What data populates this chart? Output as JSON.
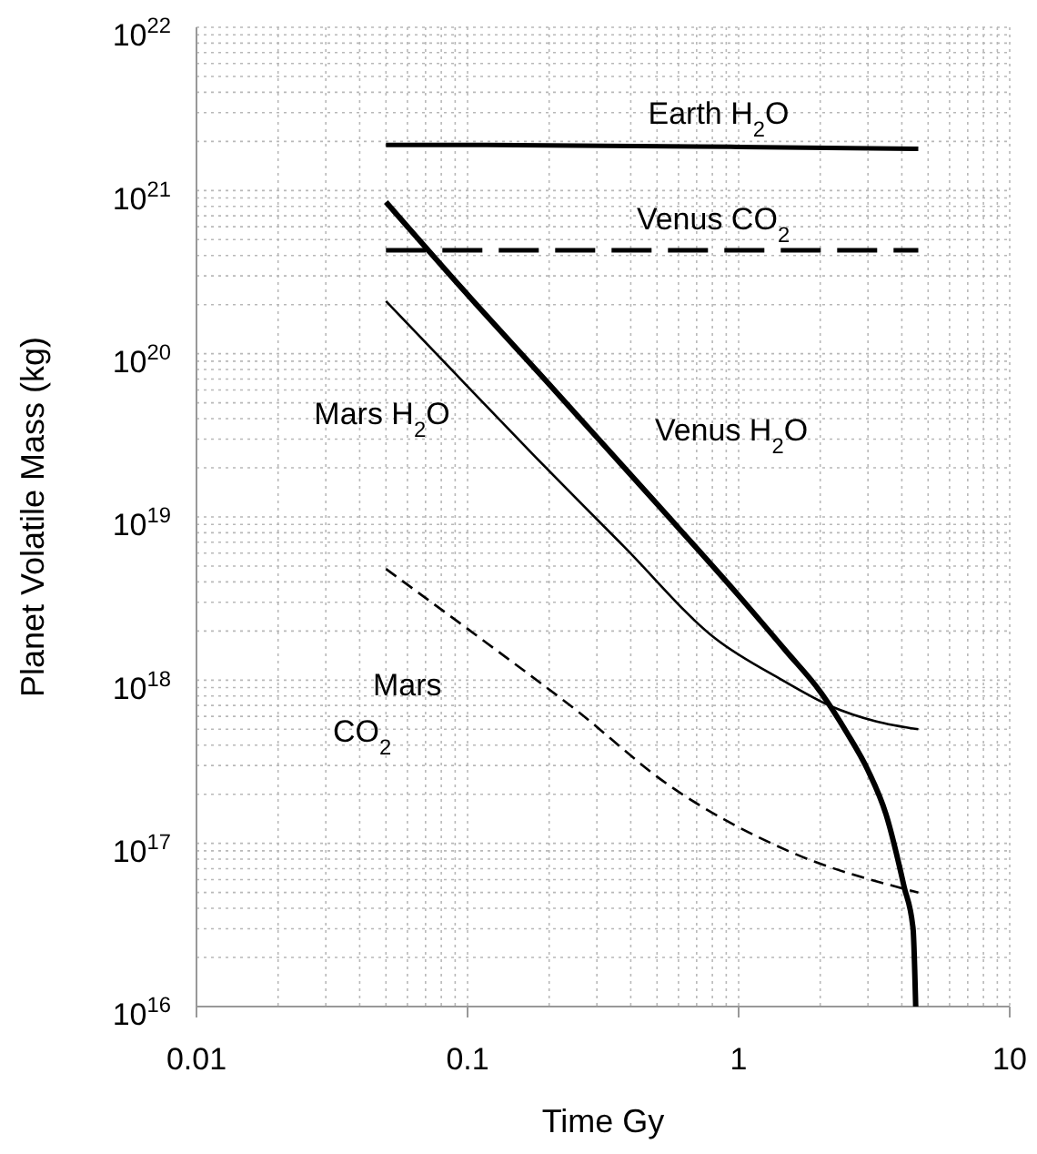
{
  "chart_data": {
    "type": "line",
    "xlabel": "Time Gy",
    "ylabel": "Planet Volatile Mass (kg)",
    "log": "xy",
    "grid": true,
    "marker": "none",
    "xlim": [
      0.01,
      10
    ],
    "xticks": [
      0.01,
      0.1,
      1,
      10
    ],
    "ylim": [
      1e+16,
      1e+22
    ],
    "yticks": [
      {
        "value": 1e+16,
        "label": "10$^{16}$"
      },
      {
        "value": 1e+17,
        "label": "10$^{17}$"
      },
      {
        "value": 1e+18,
        "label": "10$^{18}$"
      },
      {
        "value": 1e+19,
        "label": "10$^{19}$"
      },
      {
        "value": 1e+20,
        "label": "10$^{20}$"
      },
      {
        "value": 1e+21,
        "label": "10$^{21}$"
      },
      {
        "value": 1e+22,
        "label": "10$^{22}$"
      }
    ],
    "series": [
      {
        "name": "Earth H$_{2}$O",
        "color": "#000000",
        "line_style": "solid",
        "x": [
          0.05,
          0.1,
          1,
          4.6
        ],
        "values": [
          1.9e+21,
          1.9e+21,
          1.85e+21,
          1.8e+21
        ]
      },
      {
        "name": "Venus CO$_{2}$",
        "color": "#000000",
        "line_style": "dashed",
        "x": [
          0.05,
          4.6
        ],
        "values": [
          4.3e+20,
          4.3e+20
        ]
      },
      {
        "name": "Mars H$_{2}$O",
        "color": "#000000",
        "line_style": "solid",
        "x": [
          0.05,
          0.1,
          0.175,
          0.377,
          0.82,
          1.45,
          2.2,
          3.2,
          4.6
        ],
        "values": [
          2.1e+20,
          6.3e+19,
          2.4e+19,
          6.6e+18,
          1.8e+18,
          1e+18,
          6.9e+17,
          5.6e+17,
          5e+17
        ]
      },
      {
        "name": "Venus H$_{2}$O",
        "color": "#000000",
        "line_style": "solid",
        "x": [
          0.05,
          0.1,
          0.2,
          0.5,
          1,
          1.5,
          2,
          2.5,
          3,
          3.5,
          4.08,
          4.4,
          4.5
        ],
        "values": [
          8.5e+20,
          2.3e+20,
          6.5e+19,
          1.2e+19,
          3.3e+18,
          1.5e+18,
          8.5e+17,
          4.8e+17,
          2.8e+17,
          1.5e+17,
          5.4e+16,
          3e+16,
          1e+16
        ]
      },
      {
        "name": "Mars CO$_{2}$",
        "color": "#000000",
        "line_style": "dashed",
        "x": [
          0.05,
          0.117,
          0.253,
          0.547,
          1.52,
          4.6
        ],
        "values": [
          4.8e+18,
          1.7e+18,
          6.5e+17,
          2.3e+17,
          9e+16,
          5e+16
        ]
      }
    ]
  }
}
